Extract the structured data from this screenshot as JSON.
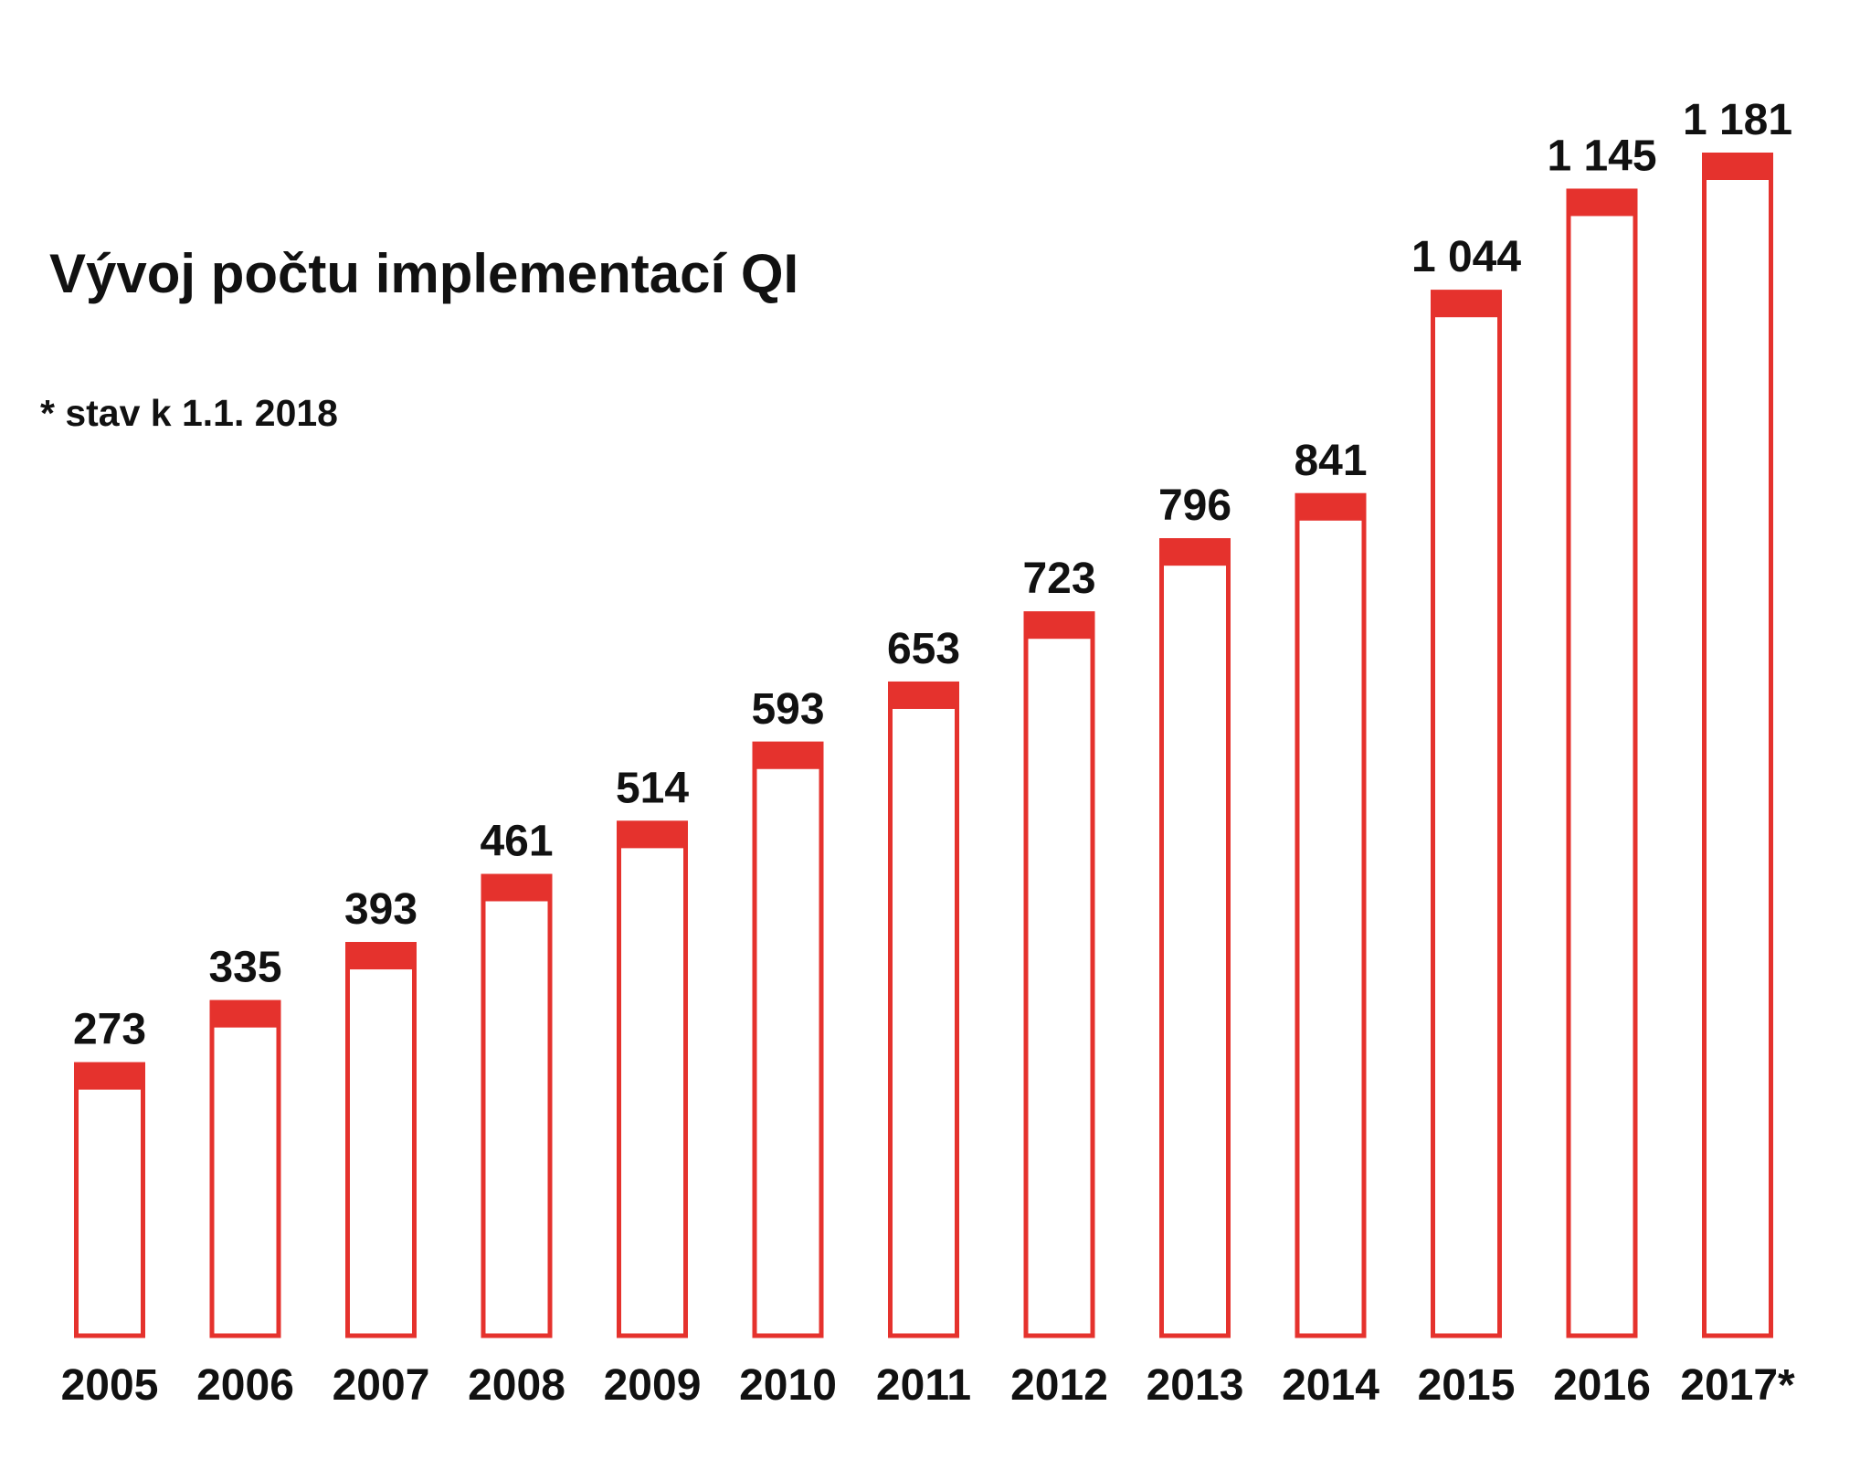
{
  "chart": {
    "title": "Vývoj počtu implementací QI",
    "note": "* stav k 1.1. 2018"
  },
  "colors": {
    "accent": "#e5322d",
    "bar_fill": "#ffffff",
    "text": "#111111",
    "background": "#ffffff"
  },
  "chart_data": {
    "type": "bar",
    "title": "Vývoj počtu implementací QI",
    "annotations": [
      "* stav k 1.1. 2018"
    ],
    "xlabel": "",
    "ylabel": "",
    "categories": [
      "2005",
      "2006",
      "2007",
      "2008",
      "2009",
      "2010",
      "2011",
      "2012",
      "2013",
      "2014",
      "2015",
      "2016",
      "2017*"
    ],
    "values": [
      273,
      335,
      393,
      461,
      514,
      593,
      653,
      723,
      796,
      841,
      1044,
      1145,
      1181
    ],
    "value_labels": [
      "273",
      "335",
      "393",
      "461",
      "514",
      "593",
      "653",
      "723",
      "796",
      "841",
      "1 044",
      "1 145",
      "1 181"
    ],
    "ylim": [
      0,
      1181
    ],
    "grid": false,
    "legend": "none",
    "y_axis_visible": false
  }
}
